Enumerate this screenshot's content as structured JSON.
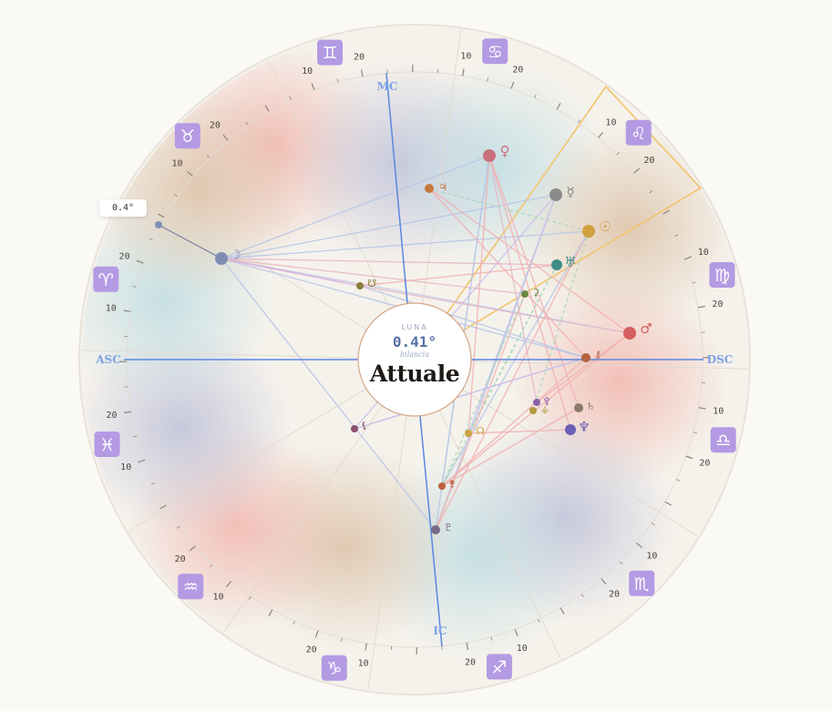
{
  "center": {
    "kicker": "LUNA",
    "degree": "0.41°",
    "sign": "bilancia",
    "title": "Attuale"
  },
  "tooltip": "0.4°",
  "angles": {
    "asc": "ASC",
    "dsc": "DSC",
    "mc": "MC",
    "ic": "IC"
  },
  "tick_labels": {
    "ten": "10",
    "twenty": "20"
  },
  "colors": {
    "angle_line": "#5b86e0",
    "highlight": "#f2c46b",
    "ring": "#e3ddd3",
    "sign_badge": "#b49ae3"
  },
  "signs": [
    {
      "name": "aries",
      "glyph": "♈"
    },
    {
      "name": "taurus",
      "glyph": "♉"
    },
    {
      "name": "gemini",
      "glyph": "♊"
    },
    {
      "name": "cancer",
      "glyph": "♋"
    },
    {
      "name": "leo",
      "glyph": "♌"
    },
    {
      "name": "virgo",
      "glyph": "♍"
    },
    {
      "name": "libra",
      "glyph": "♎"
    },
    {
      "name": "scorpio",
      "glyph": "♏"
    },
    {
      "name": "sagittarius",
      "glyph": "♐"
    },
    {
      "name": "capricorn",
      "glyph": "♑"
    },
    {
      "name": "aquarius",
      "glyph": "♒"
    },
    {
      "name": "pisces",
      "glyph": "♓"
    }
  ],
  "planets": [
    {
      "name": "moon",
      "glyph": "☽",
      "color": "#7c8fb2"
    },
    {
      "name": "venus",
      "glyph": "♀",
      "color": "#c9707e"
    },
    {
      "name": "jupiter",
      "glyph": "♃",
      "color": "#c7773c"
    },
    {
      "name": "mercury",
      "glyph": "☿",
      "color": "#8a8a8a"
    },
    {
      "name": "sun",
      "glyph": "☉",
      "color": "#d1a13e"
    },
    {
      "name": "uranus",
      "glyph": "♅",
      "color": "#3f8d85"
    },
    {
      "name": "ceres",
      "glyph": "⚳",
      "color": "#6a8a47"
    },
    {
      "name": "mars",
      "glyph": "♂",
      "color": "#d45f5f"
    },
    {
      "name": "chiron",
      "glyph": "⚷",
      "color": "#b5623f"
    },
    {
      "name": "saturn",
      "glyph": "♄",
      "color": "#8a7b6a"
    },
    {
      "name": "neptune",
      "glyph": "♆",
      "color": "#6b5fb5"
    },
    {
      "name": "pallas",
      "glyph": "⚴",
      "color": "#8b5fa6"
    },
    {
      "name": "vesta",
      "glyph": "⚶",
      "color": "#b59a3f"
    },
    {
      "name": "node",
      "glyph": "☊",
      "color": "#c9a33f"
    },
    {
      "name": "lilith",
      "glyph": "⚸",
      "color": "#8b4e6e"
    },
    {
      "name": "juno",
      "glyph": "⚵",
      "color": "#c0603f"
    },
    {
      "name": "pluto",
      "glyph": "♇",
      "color": "#7a6a8a"
    },
    {
      "name": "fortune",
      "glyph": "☋",
      "color": "#8c7d3c"
    }
  ]
}
